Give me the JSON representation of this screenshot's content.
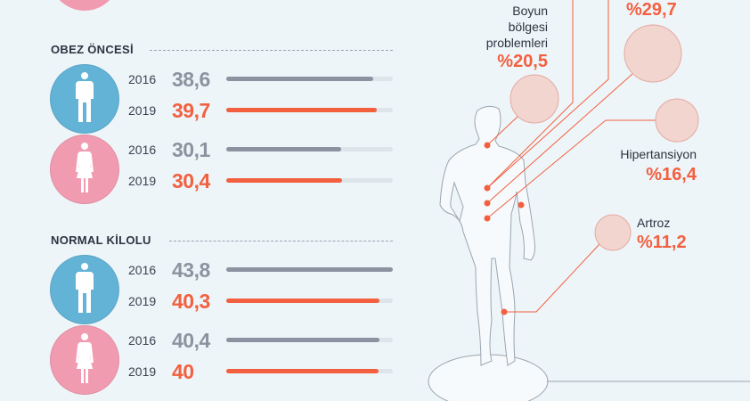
{
  "colors": {
    "male": "#62b3d6",
    "female": "#f19bb0",
    "y2016": "#8b93a0",
    "y2019": "#f2603f",
    "disease_circle": "#f3d5d0"
  },
  "chart_data": {
    "type": "bar",
    "xlim": [
      0,
      43.8
    ],
    "groups": [
      {
        "title": "OBEZ ÖNCESİ",
        "rows": [
          {
            "gender": "male",
            "icon": "male-figure-icon",
            "year": "2016",
            "value": 38.6,
            "label": "38,6"
          },
          {
            "gender": "male",
            "icon": "male-figure-icon",
            "year": "2019",
            "value": 39.7,
            "label": "39,7"
          },
          {
            "gender": "female",
            "icon": "female-figure-icon",
            "year": "2016",
            "value": 30.1,
            "label": "30,1"
          },
          {
            "gender": "female",
            "icon": "female-figure-icon",
            "year": "2019",
            "value": 30.4,
            "label": "30,4"
          }
        ]
      },
      {
        "title": "NORMAL KİLOLU",
        "rows": [
          {
            "gender": "male",
            "icon": "male-figure-icon",
            "year": "2016",
            "value": 43.8,
            "label": "43,8"
          },
          {
            "gender": "male",
            "icon": "male-figure-icon",
            "year": "2019",
            "value": 40.3,
            "label": "40,3"
          },
          {
            "gender": "female",
            "icon": "female-figure-icon",
            "year": "2016",
            "value": 40.4,
            "label": "40,4"
          },
          {
            "gender": "female",
            "icon": "female-figure-icon",
            "year": "2019",
            "value": 40,
            "label": "40"
          }
        ]
      }
    ]
  },
  "diseases": [
    {
      "name": "Boyun bölgesi problemleri",
      "lines": [
        "Boyun",
        "bölgesi",
        "problemleri"
      ],
      "value": 20.5,
      "label": "%20,5"
    },
    {
      "name": "",
      "value": 29.7,
      "label": "%29,7"
    },
    {
      "name": "Hipertansiyon",
      "value": 16.4,
      "label": "%16,4"
    },
    {
      "name": "Artroz",
      "value": 11.2,
      "label": "%11,2"
    }
  ]
}
